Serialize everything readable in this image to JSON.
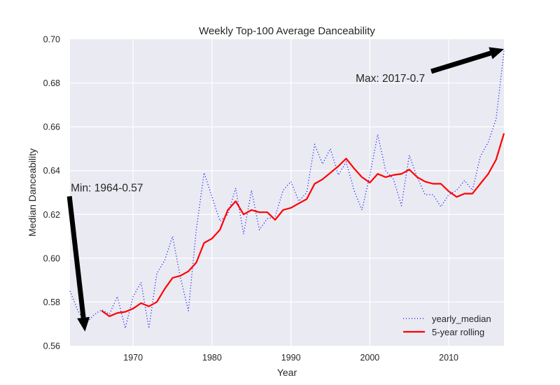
{
  "chart_data": {
    "type": "line",
    "title": "Weekly Top-100 Average Danceability",
    "xlabel": "Year",
    "ylabel": "Median Danceability",
    "xlim": [
      1962,
      2017
    ],
    "ylim": [
      0.56,
      0.7
    ],
    "xticks": [
      1970,
      1980,
      1990,
      2000,
      2010
    ],
    "xtick_labels": [
      "1970",
      "1980",
      "1990",
      "2000",
      "2010"
    ],
    "yticks": [
      0.56,
      0.58,
      0.6,
      0.62,
      0.64,
      0.66,
      0.68,
      0.7
    ],
    "ytick_labels": [
      "0.56",
      "0.58",
      "0.60",
      "0.62",
      "0.64",
      "0.66",
      "0.68",
      "0.70"
    ],
    "grid": true,
    "legend_position": "bottom-right",
    "colors": {
      "background": "#eaeaf2",
      "grid": "#ffffff",
      "yearly_median": "#0000ff",
      "rolling": "#ff0000",
      "arrow": "#000000"
    },
    "series": [
      {
        "name": "yearly_median",
        "style": "dotted",
        "x": [
          1962,
          1963,
          1964,
          1965,
          1966,
          1967,
          1968,
          1969,
          1970,
          1971,
          1972,
          1973,
          1974,
          1975,
          1976,
          1977,
          1978,
          1979,
          1980,
          1981,
          1982,
          1983,
          1984,
          1985,
          1986,
          1987,
          1988,
          1989,
          1990,
          1991,
          1992,
          1993,
          1994,
          1995,
          1996,
          1997,
          1998,
          1999,
          2000,
          2001,
          2002,
          2003,
          2004,
          2005,
          2006,
          2007,
          2008,
          2009,
          2010,
          2011,
          2012,
          2013,
          2014,
          2015,
          2016,
          2017
        ],
        "values": [
          0.585,
          0.576,
          0.57,
          0.574,
          0.5765,
          0.5745,
          0.5825,
          0.568,
          0.5825,
          0.589,
          0.568,
          0.593,
          0.599,
          0.61,
          0.591,
          0.576,
          0.613,
          0.639,
          0.628,
          0.617,
          0.62,
          0.632,
          0.611,
          0.631,
          0.613,
          0.618,
          0.619,
          0.631,
          0.635,
          0.626,
          0.63,
          0.652,
          0.643,
          0.65,
          0.638,
          0.644,
          0.631,
          0.622,
          0.638,
          0.6565,
          0.64,
          0.636,
          0.624,
          0.647,
          0.637,
          0.629,
          0.629,
          0.6235,
          0.629,
          0.631,
          0.6355,
          0.631,
          0.6465,
          0.653,
          0.6635,
          0.6945
        ]
      },
      {
        "name": "5-year rolling",
        "style": "solid",
        "x": [
          1966,
          1967,
          1968,
          1969,
          1970,
          1971,
          1972,
          1973,
          1974,
          1975,
          1976,
          1977,
          1978,
          1979,
          1980,
          1981,
          1982,
          1983,
          1984,
          1985,
          1986,
          1987,
          1988,
          1989,
          1990,
          1991,
          1992,
          1993,
          1994,
          1995,
          1996,
          1997,
          1998,
          1999,
          2000,
          2001,
          2002,
          2003,
          2004,
          2005,
          2006,
          2007,
          2008,
          2009,
          2010,
          2011,
          2012,
          2013,
          2014,
          2015,
          2016,
          2017
        ],
        "values": [
          0.576,
          0.5735,
          0.575,
          0.5755,
          0.577,
          0.5795,
          0.578,
          0.58,
          0.586,
          0.591,
          0.592,
          0.594,
          0.598,
          0.607,
          0.609,
          0.613,
          0.622,
          0.626,
          0.62,
          0.622,
          0.621,
          0.621,
          0.6175,
          0.622,
          0.623,
          0.625,
          0.627,
          0.634,
          0.636,
          0.639,
          0.642,
          0.6455,
          0.641,
          0.637,
          0.6345,
          0.6385,
          0.637,
          0.638,
          0.6385,
          0.6405,
          0.637,
          0.635,
          0.634,
          0.634,
          0.6305,
          0.628,
          0.6295,
          0.6295,
          0.634,
          0.6385,
          0.645,
          0.657
        ]
      }
    ],
    "legend": [
      "yearly_median",
      "5-year rolling"
    ],
    "annotations": [
      {
        "name": "max",
        "text": "Max: 2017-0.7",
        "point": [
          2017,
          0.6955
        ],
        "text_at": [
          1998.2,
          0.6805
        ]
      },
      {
        "name": "min",
        "text": "Min: 1964-0.57",
        "point": [
          1963.9,
          0.5665
        ],
        "text_at": [
          1962.1,
          0.6305
        ]
      }
    ]
  }
}
